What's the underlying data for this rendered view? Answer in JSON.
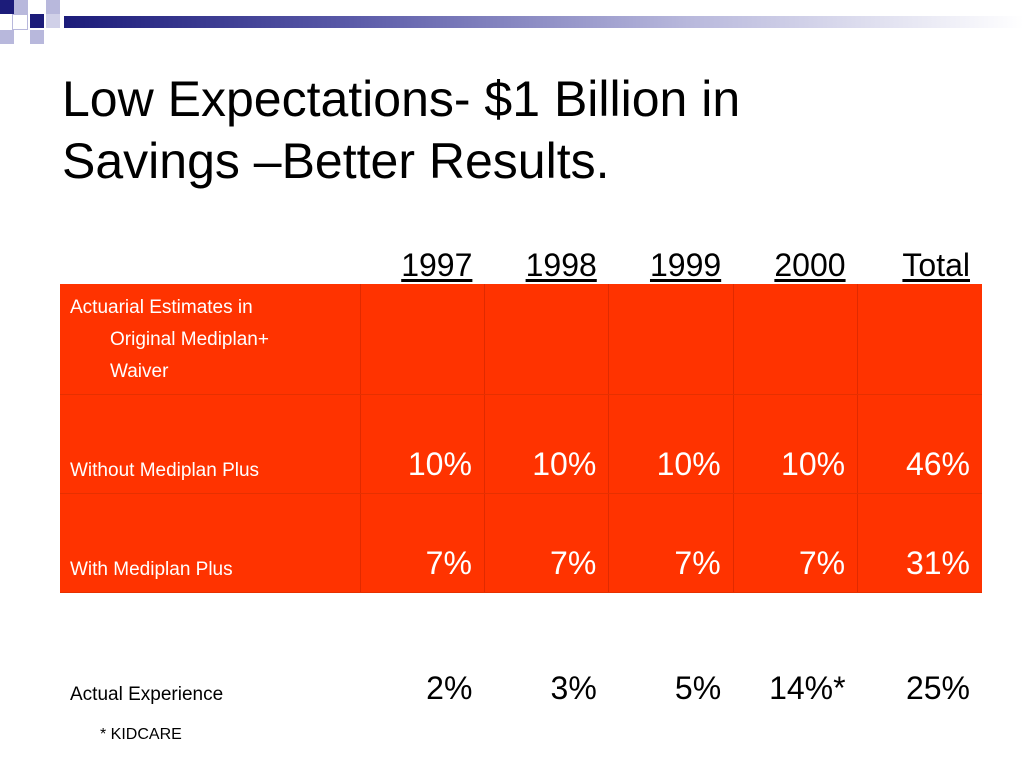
{
  "colors": {
    "accent_red": "#ff3300",
    "navy": "#1c1c7a",
    "lavender": "#b8b8dc"
  },
  "slide": {
    "title_line1": "Low Expectations-  $1 Billion in",
    "title_line2": "Savings –Better Results."
  },
  "table": {
    "headers": [
      "1997",
      "1998",
      "1999",
      "2000",
      "Total"
    ],
    "rows": [
      {
        "label_line1": "Actuarial Estimates in",
        "label_line2": "Original Mediplan+",
        "label_line3": "Waiver",
        "values": [
          "",
          "",
          "",
          "",
          ""
        ]
      },
      {
        "label": "Without Mediplan Plus",
        "values": [
          "10%",
          "10%",
          "10%",
          "10%",
          "46%"
        ]
      },
      {
        "label": "With Mediplan Plus",
        "values": [
          "7%",
          "7%",
          "7%",
          "7%",
          "31%"
        ]
      },
      {
        "label": "Actual Experience",
        "values": [
          "2%",
          "3%",
          "5%",
          "14%*",
          "25%"
        ]
      }
    ]
  },
  "footnote": "* KIDCARE"
}
